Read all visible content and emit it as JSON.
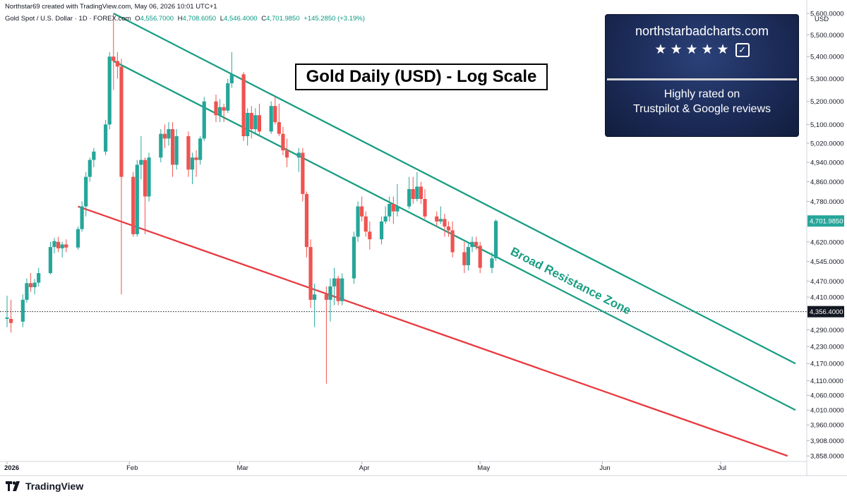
{
  "header": {
    "credit": "Northstar69 created with TradingView.com, May 06, 2026 10:01 UTC+1"
  },
  "instrument": {
    "name": "Gold Spot / U.S. Dollar · 1D · FOREX.com",
    "open_label": "O",
    "open": "4,556.7000",
    "high_label": "H",
    "high": "4,708.6050",
    "low_label": "L",
    "low": "4,546.4000",
    "close_label": "C",
    "close": "4,701.9850",
    "change": "+145.2850 (+3.19%)"
  },
  "currency": "USD",
  "title_box": "Gold Daily (USD) - Log Scale",
  "promo": {
    "site": "northstarbadcharts.com",
    "stars": "★★★★★",
    "line1": "Highly rated on",
    "line2": "Trustpilot & Google reviews"
  },
  "annotation": "Broad Resistance Zone",
  "footer": {
    "brand": "TradingView"
  },
  "colors": {
    "up": "#26a69a",
    "down": "#ef5350",
    "resistance": "#1a9e82",
    "support": "#e8393f",
    "last_price_bg": "#26a69a",
    "crosshair_bg": "#131722"
  },
  "chart_data": {
    "type": "candlestick",
    "scale": "log",
    "y_ticks": [
      3858,
      3908,
      3960,
      4010,
      4060,
      4110,
      4170,
      4230,
      4290,
      4356.4,
      4410,
      4470,
      4545,
      4620,
      4701.985,
      4780,
      4860,
      4940,
      5020,
      5100,
      5200,
      5300,
      5400,
      5500,
      5600
    ],
    "y_tick_labels": [
      "3,858.0000",
      "3,908.0000",
      "3,960.0000",
      "4,010.0000",
      "4,060.0000",
      "4,110.0000",
      "4,170.0000",
      "4,230.0000",
      "4,290.0000",
      "4,356.4000",
      "4,410.0000",
      "4,470.0000",
      "4,545.0000",
      "4,620.0000",
      "4,701.9850",
      "4,780.0000",
      "4,860.0000",
      "4,940.0000",
      "5,020.0000",
      "5,100.0000",
      "5,200.0000",
      "5,300.0000",
      "5,400.0000",
      "5,500.0000",
      "5,600.0000"
    ],
    "last_price": 4701.985,
    "last_price_label": "4,701.9850",
    "crosshair_price": 4356.4,
    "crosshair_label": "4,356.4000",
    "x_labels": [
      {
        "date": "2026-01-01",
        "label": "2026"
      },
      {
        "date": "2026-02-01",
        "label": "Feb"
      },
      {
        "date": "2026-03-01",
        "label": "Mar"
      },
      {
        "date": "2026-04-01",
        "label": "Apr"
      },
      {
        "date": "2026-05-01",
        "label": "May"
      },
      {
        "date": "2026-06-01",
        "label": "Jun"
      },
      {
        "date": "2026-07-01",
        "label": "Jul"
      }
    ],
    "x_range": [
      "2026-01-01",
      "2026-07-20"
    ],
    "candles": [
      {
        "date": "2026-01-01",
        "o": 4330,
        "h": 4415,
        "l": 4300,
        "c": 4335
      },
      {
        "date": "2026-01-02",
        "o": 4330,
        "h": 4400,
        "l": 4280,
        "c": 4315
      },
      {
        "date": "2026-01-05",
        "o": 4320,
        "h": 4420,
        "l": 4300,
        "c": 4400
      },
      {
        "date": "2026-01-06",
        "o": 4400,
        "h": 4480,
        "l": 4390,
        "c": 4462
      },
      {
        "date": "2026-01-07",
        "o": 4462,
        "h": 4500,
        "l": 4430,
        "c": 4447
      },
      {
        "date": "2026-01-08",
        "o": 4447,
        "h": 4478,
        "l": 4420,
        "c": 4464
      },
      {
        "date": "2026-01-09",
        "o": 4464,
        "h": 4520,
        "l": 4450,
        "c": 4500
      },
      {
        "date": "2026-01-12",
        "o": 4500,
        "h": 4620,
        "l": 4495,
        "c": 4600
      },
      {
        "date": "2026-01-13",
        "o": 4600,
        "h": 4635,
        "l": 4575,
        "c": 4623
      },
      {
        "date": "2026-01-14",
        "o": 4620,
        "h": 4640,
        "l": 4580,
        "c": 4595
      },
      {
        "date": "2026-01-15",
        "o": 4595,
        "h": 4620,
        "l": 4560,
        "c": 4610
      },
      {
        "date": "2026-01-16",
        "o": 4610,
        "h": 4630,
        "l": 4580,
        "c": 4598
      },
      {
        "date": "2026-01-19",
        "o": 4598,
        "h": 4680,
        "l": 4590,
        "c": 4670
      },
      {
        "date": "2026-01-20",
        "o": 4670,
        "h": 4780,
        "l": 4660,
        "c": 4760
      },
      {
        "date": "2026-01-21",
        "o": 4760,
        "h": 4900,
        "l": 4720,
        "c": 4880
      },
      {
        "date": "2026-01-22",
        "o": 4880,
        "h": 4960,
        "l": 4860,
        "c": 4950
      },
      {
        "date": "2026-01-23",
        "o": 4950,
        "h": 5000,
        "l": 4920,
        "c": 4985
      },
      {
        "date": "2026-01-26",
        "o": 4985,
        "h": 5120,
        "l": 4970,
        "c": 5100
      },
      {
        "date": "2026-01-27",
        "o": 5100,
        "h": 5420,
        "l": 5080,
        "c": 5400
      },
      {
        "date": "2026-01-28",
        "o": 5400,
        "h": 5600,
        "l": 5250,
        "c": 5380
      },
      {
        "date": "2026-01-29",
        "o": 5380,
        "h": 5420,
        "l": 5300,
        "c": 5355
      },
      {
        "date": "2026-01-30",
        "o": 5355,
        "h": 5390,
        "l": 4420,
        "c": 4880
      },
      {
        "date": "2026-02-02",
        "o": 4880,
        "h": 4900,
        "l": 4640,
        "c": 4650
      },
      {
        "date": "2026-02-03",
        "o": 4650,
        "h": 4950,
        "l": 4640,
        "c": 4930
      },
      {
        "date": "2026-02-04",
        "o": 4930,
        "h": 5050,
        "l": 4870,
        "c": 4950
      },
      {
        "date": "2026-02-05",
        "o": 4950,
        "h": 4960,
        "l": 4650,
        "c": 4800
      },
      {
        "date": "2026-02-06",
        "o": 4800,
        "h": 4980,
        "l": 4780,
        "c": 4960
      },
      {
        "date": "2026-02-09",
        "o": 4960,
        "h": 5080,
        "l": 4940,
        "c": 5060
      },
      {
        "date": "2026-02-10",
        "o": 5060,
        "h": 5100,
        "l": 5000,
        "c": 5040
      },
      {
        "date": "2026-02-11",
        "o": 5040,
        "h": 5110,
        "l": 5010,
        "c": 5080
      },
      {
        "date": "2026-02-12",
        "o": 5080,
        "h": 5110,
        "l": 4880,
        "c": 4930
      },
      {
        "date": "2026-02-13",
        "o": 4930,
        "h": 5080,
        "l": 4910,
        "c": 5050
      },
      {
        "date": "2026-02-16",
        "o": 5050,
        "h": 5070,
        "l": 4880,
        "c": 4910
      },
      {
        "date": "2026-02-17",
        "o": 4910,
        "h": 4980,
        "l": 4850,
        "c": 4960
      },
      {
        "date": "2026-02-18",
        "o": 4960,
        "h": 4990,
        "l": 4880,
        "c": 4950
      },
      {
        "date": "2026-02-19",
        "o": 4950,
        "h": 5050,
        "l": 4930,
        "c": 5040
      },
      {
        "date": "2026-02-20",
        "o": 5040,
        "h": 5220,
        "l": 5030,
        "c": 5200
      },
      {
        "date": "2026-02-23",
        "o": 5200,
        "h": 5230,
        "l": 5110,
        "c": 5140
      },
      {
        "date": "2026-02-24",
        "o": 5140,
        "h": 5210,
        "l": 5110,
        "c": 5175
      },
      {
        "date": "2026-02-25",
        "o": 5175,
        "h": 5190,
        "l": 5110,
        "c": 5160
      },
      {
        "date": "2026-02-26",
        "o": 5160,
        "h": 5300,
        "l": 5150,
        "c": 5280
      },
      {
        "date": "2026-02-27",
        "o": 5280,
        "h": 5420,
        "l": 5260,
        "c": 5320
      },
      {
        "date": "2026-03-02",
        "o": 5320,
        "h": 5330,
        "l": 5030,
        "c": 5050
      },
      {
        "date": "2026-03-03",
        "o": 5050,
        "h": 5170,
        "l": 5010,
        "c": 5150
      },
      {
        "date": "2026-03-04",
        "o": 5150,
        "h": 5180,
        "l": 5040,
        "c": 5080
      },
      {
        "date": "2026-03-05",
        "o": 5080,
        "h": 5170,
        "l": 5060,
        "c": 5140
      },
      {
        "date": "2026-03-06",
        "o": 5140,
        "h": 5190,
        "l": 5050,
        "c": 5070
      },
      {
        "date": "2026-03-09",
        "o": 5070,
        "h": 5200,
        "l": 5060,
        "c": 5180
      },
      {
        "date": "2026-03-10",
        "o": 5180,
        "h": 5220,
        "l": 5100,
        "c": 5110
      },
      {
        "date": "2026-03-11",
        "o": 5110,
        "h": 5190,
        "l": 5050,
        "c": 5060
      },
      {
        "date": "2026-03-12",
        "o": 5060,
        "h": 5090,
        "l": 4970,
        "c": 4990
      },
      {
        "date": "2026-03-13",
        "o": 4990,
        "h": 5040,
        "l": 4920,
        "c": 4960
      },
      {
        "date": "2026-03-16",
        "o": 4960,
        "h": 5000,
        "l": 4900,
        "c": 4980
      },
      {
        "date": "2026-03-17",
        "o": 4980,
        "h": 5000,
        "l": 4780,
        "c": 4810
      },
      {
        "date": "2026-03-18",
        "o": 4810,
        "h": 4820,
        "l": 4560,
        "c": 4600
      },
      {
        "date": "2026-03-19",
        "o": 4600,
        "h": 4630,
        "l": 4370,
        "c": 4400
      },
      {
        "date": "2026-03-20",
        "o": 4400,
        "h": 4460,
        "l": 4300,
        "c": 4420
      },
      {
        "date": "2026-03-23",
        "o": 4420,
        "h": 4450,
        "l": 4100,
        "c": 4400
      },
      {
        "date": "2026-03-24",
        "o": 4400,
        "h": 4480,
        "l": 4320,
        "c": 4450
      },
      {
        "date": "2026-03-25",
        "o": 4450,
        "h": 4520,
        "l": 4380,
        "c": 4480
      },
      {
        "date": "2026-03-26",
        "o": 4480,
        "h": 4490,
        "l": 4380,
        "c": 4395
      },
      {
        "date": "2026-03-27",
        "o": 4395,
        "h": 4500,
        "l": 4380,
        "c": 4480
      },
      {
        "date": "2026-03-30",
        "o": 4480,
        "h": 4660,
        "l": 4460,
        "c": 4640
      },
      {
        "date": "2026-03-31",
        "o": 4640,
        "h": 4780,
        "l": 4620,
        "c": 4760
      },
      {
        "date": "2026-04-01",
        "o": 4760,
        "h": 4800,
        "l": 4700,
        "c": 4720
      },
      {
        "date": "2026-04-02",
        "o": 4720,
        "h": 4740,
        "l": 4640,
        "c": 4660
      },
      {
        "date": "2026-04-03",
        "o": 4660,
        "h": 4700,
        "l": 4590,
        "c": 4630
      },
      {
        "date": "2026-04-06",
        "o": 4630,
        "h": 4720,
        "l": 4610,
        "c": 4700
      },
      {
        "date": "2026-04-07",
        "o": 4700,
        "h": 4760,
        "l": 4690,
        "c": 4720
      },
      {
        "date": "2026-04-08",
        "o": 4720,
        "h": 4800,
        "l": 4700,
        "c": 4770
      },
      {
        "date": "2026-04-09",
        "o": 4770,
        "h": 4800,
        "l": 4690,
        "c": 4740
      },
      {
        "date": "2026-04-10",
        "o": 4740,
        "h": 4850,
        "l": 4720,
        "c": 4760
      },
      {
        "date": "2026-04-13",
        "o": 4760,
        "h": 4880,
        "l": 4750,
        "c": 4830
      },
      {
        "date": "2026-04-14",
        "o": 4830,
        "h": 4880,
        "l": 4770,
        "c": 4790
      },
      {
        "date": "2026-04-15",
        "o": 4790,
        "h": 4900,
        "l": 4780,
        "c": 4840
      },
      {
        "date": "2026-04-16",
        "o": 4840,
        "h": 4860,
        "l": 4770,
        "c": 4790
      },
      {
        "date": "2026-04-17",
        "o": 4790,
        "h": 4830,
        "l": 4710,
        "c": 4720
      },
      {
        "date": "2026-04-20",
        "o": 4720,
        "h": 4740,
        "l": 4680,
        "c": 4700
      },
      {
        "date": "2026-04-21",
        "o": 4700,
        "h": 4760,
        "l": 4690,
        "c": 4710
      },
      {
        "date": "2026-04-22",
        "o": 4710,
        "h": 4730,
        "l": 4640,
        "c": 4680
      },
      {
        "date": "2026-04-23",
        "o": 4680,
        "h": 4700,
        "l": 4640,
        "c": 4665
      },
      {
        "date": "2026-04-24",
        "o": 4665,
        "h": 4700,
        "l": 4560,
        "c": 4580
      },
      {
        "date": "2026-04-27",
        "o": 4580,
        "h": 4620,
        "l": 4500,
        "c": 4530
      },
      {
        "date": "2026-04-28",
        "o": 4530,
        "h": 4620,
        "l": 4510,
        "c": 4600
      },
      {
        "date": "2026-04-29",
        "o": 4600,
        "h": 4640,
        "l": 4580,
        "c": 4620
      },
      {
        "date": "2026-04-30",
        "o": 4620,
        "h": 4640,
        "l": 4590,
        "c": 4605
      },
      {
        "date": "2026-05-01",
        "o": 4605,
        "h": 4620,
        "l": 4500,
        "c": 4520
      },
      {
        "date": "2026-05-04",
        "o": 4520,
        "h": 4580,
        "l": 4500,
        "c": 4556
      },
      {
        "date": "2026-05-05",
        "o": 4556.7,
        "h": 4708.605,
        "l": 4546.4,
        "c": 4701.985
      }
    ],
    "trendlines": [
      {
        "name": "upper-resistance",
        "color": "#1a9e82",
        "from": {
          "date": "2026-01-28",
          "price": 5600
        },
        "to": {
          "date": "2026-07-20",
          "price": 4170
        }
      },
      {
        "name": "lower-resistance",
        "color": "#1a9e82",
        "from": {
          "date": "2026-01-28",
          "price": 5380
        },
        "to": {
          "date": "2026-07-20",
          "price": 4010
        }
      },
      {
        "name": "support",
        "color": "#e8393f",
        "from": {
          "date": "2026-01-19",
          "price": 4760
        },
        "to": {
          "date": "2026-07-18",
          "price": 3858
        }
      }
    ]
  }
}
